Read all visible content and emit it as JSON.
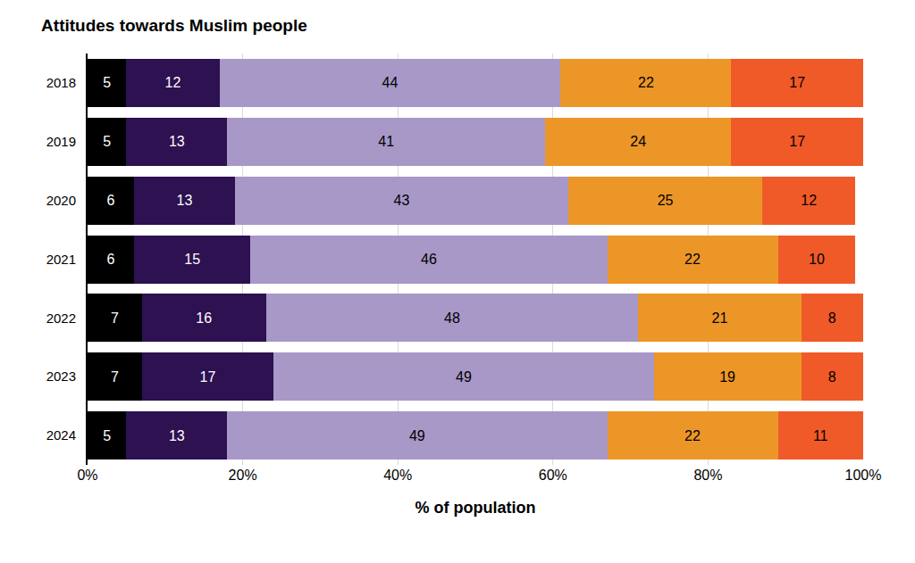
{
  "chart_data": {
    "type": "bar",
    "title": "Attitudes towards Muslim people",
    "x_label": "% of population",
    "orientation": "horizontal",
    "stacked": true,
    "data_labels": true,
    "grid": true,
    "categories": [
      "2018",
      "2019",
      "2020",
      "2021",
      "2022",
      "2023",
      "2024"
    ],
    "xlim": [
      0,
      100
    ],
    "xticks": [
      {
        "value": 0,
        "label": "0%"
      },
      {
        "value": 20,
        "label": "20%"
      },
      {
        "value": 40,
        "label": "40%"
      },
      {
        "value": 60,
        "label": "60%"
      },
      {
        "value": 80,
        "label": "80%"
      },
      {
        "value": 100,
        "label": "100%"
      }
    ],
    "series": [
      {
        "color": "#000000",
        "values": [
          5,
          5,
          6,
          6,
          7,
          7,
          5
        ]
      },
      {
        "color": "#2d1150",
        "values": [
          12,
          13,
          13,
          15,
          16,
          17,
          13
        ]
      },
      {
        "color": "#a898c8",
        "values": [
          44,
          41,
          43,
          46,
          48,
          49,
          49
        ]
      },
      {
        "color": "#ec9628",
        "values": [
          22,
          24,
          25,
          22,
          21,
          19,
          22
        ]
      },
      {
        "color": "#f05a28",
        "values": [
          17,
          17,
          12,
          10,
          8,
          8,
          11
        ]
      }
    ]
  }
}
